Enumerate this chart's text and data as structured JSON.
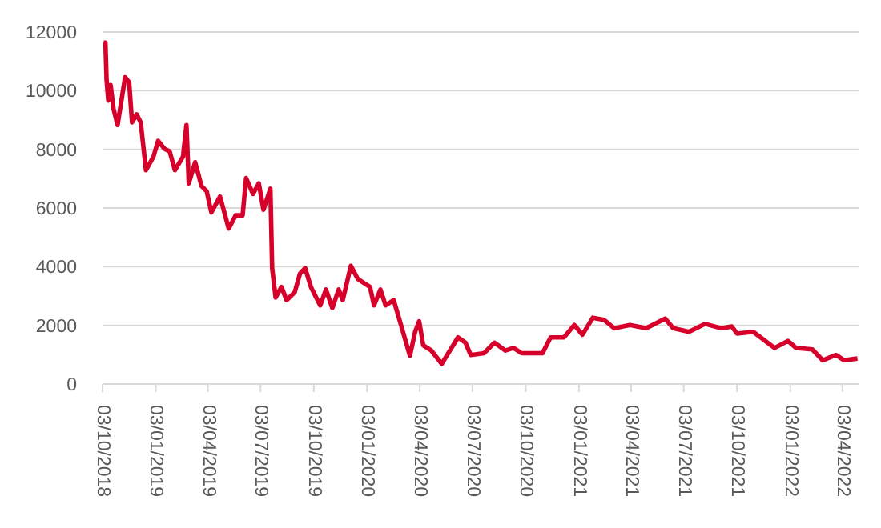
{
  "chart_data": {
    "type": "line",
    "x": [
      "2018-10-05",
      "2018-10-08",
      "2018-10-10",
      "2018-10-13",
      "2018-10-17",
      "2018-10-22",
      "2018-10-29",
      "2018-11-11",
      "2018-11-18",
      "2018-11-23",
      "2018-12-01",
      "2018-12-08",
      "2018-12-17",
      "2018-12-30",
      "2019-01-07",
      "2019-01-18",
      "2019-01-27",
      "2019-02-05",
      "2019-02-19",
      "2019-02-25",
      "2019-03-01",
      "2019-03-12",
      "2019-03-23",
      "2019-04-01",
      "2019-04-09",
      "2019-04-24",
      "2019-05-09",
      "2019-05-21",
      "2019-06-02",
      "2019-06-08",
      "2019-06-20",
      "2019-06-30",
      "2019-07-08",
      "2019-07-20",
      "2019-07-23",
      "2019-07-29",
      "2019-08-08",
      "2019-08-17",
      "2019-08-31",
      "2019-09-09",
      "2019-09-18",
      "2019-09-28",
      "2019-10-14",
      "2019-10-24",
      "2019-11-04",
      "2019-11-15",
      "2019-11-22",
      "2019-12-06",
      "2019-12-18",
      "2020-01-08",
      "2020-01-15",
      "2020-01-26",
      "2020-02-04",
      "2020-02-18",
      "2020-03-01",
      "2020-03-17",
      "2020-03-26",
      "2020-04-02",
      "2020-04-09",
      "2020-04-23",
      "2020-05-11",
      "2020-06-08",
      "2020-06-21",
      "2020-06-30",
      "2020-07-23",
      "2020-08-10",
      "2020-08-29",
      "2020-09-12",
      "2020-09-26",
      "2020-11-01",
      "2020-11-15",
      "2020-12-08",
      "2020-12-26",
      "2021-01-09",
      "2021-01-27",
      "2021-02-15",
      "2021-03-05",
      "2021-04-01",
      "2021-04-29",
      "2021-06-01",
      "2021-06-15",
      "2021-07-12",
      "2021-08-09",
      "2021-09-06",
      "2021-09-24",
      "2021-10-03",
      "2021-10-31",
      "2021-12-07",
      "2021-12-30",
      "2022-01-13",
      "2022-02-10",
      "2022-02-28",
      "2022-03-23",
      "2022-04-06",
      "2022-04-29"
    ],
    "series": [
      {
        "color": "#d6002a",
        "values": [
          11640,
          11640,
          10370,
          9660,
          10190,
          9380,
          8830,
          10460,
          10280,
          8920,
          9190,
          8920,
          7290,
          7750,
          8290,
          8020,
          7930,
          7290,
          7750,
          8830,
          6840,
          7560,
          6750,
          6570,
          5850,
          6390,
          5300,
          5750,
          5750,
          7020,
          6480,
          6840,
          5940,
          6660,
          3950,
          2950,
          3310,
          2860,
          3130,
          3760,
          3950,
          3310,
          2680,
          3220,
          2590,
          3220,
          2860,
          4030,
          3580,
          3310,
          2680,
          3220,
          2680,
          2860,
          2050,
          960,
          1780,
          2140,
          1320,
          1140,
          690,
          1590,
          1410,
          990,
          1050,
          1410,
          1140,
          1230,
          1050,
          1050,
          1590,
          1590,
          2010,
          1680,
          2260,
          2190,
          1900,
          2010,
          1900,
          2230,
          1900,
          1780,
          2050,
          1900,
          1960,
          1720,
          1780,
          1230,
          1470,
          1230,
          1180,
          810,
          990,
          810,
          870
        ]
      }
    ],
    "xlim": [
      "2018-10-03",
      "2022-05-01"
    ],
    "xticks": [
      {
        "value": "2018-10-03",
        "label": "03/10/2018"
      },
      {
        "value": "2019-01-03",
        "label": "03/01/2019"
      },
      {
        "value": "2019-04-03",
        "label": "03/04/2019"
      },
      {
        "value": "2019-07-03",
        "label": "03/07/2019"
      },
      {
        "value": "2019-10-03",
        "label": "03/10/2019"
      },
      {
        "value": "2020-01-03",
        "label": "03/01/2020"
      },
      {
        "value": "2020-04-03",
        "label": "03/04/2020"
      },
      {
        "value": "2020-07-03",
        "label": "03/07/2020"
      },
      {
        "value": "2020-10-03",
        "label": "03/10/2020"
      },
      {
        "value": "2021-01-03",
        "label": "03/01/2021"
      },
      {
        "value": "2021-04-03",
        "label": "03/04/2021"
      },
      {
        "value": "2021-07-03",
        "label": "03/07/2021"
      },
      {
        "value": "2021-10-03",
        "label": "03/10/2021"
      },
      {
        "value": "2022-01-03",
        "label": "03/01/2022"
      },
      {
        "value": "2022-04-03",
        "label": "03/04/2022"
      }
    ],
    "ylim": [
      0,
      12000
    ],
    "yticks": [
      0,
      2000,
      4000,
      6000,
      8000,
      10000,
      12000
    ],
    "grid": "y",
    "legend": false,
    "marker": "none",
    "line_style": "solid"
  }
}
